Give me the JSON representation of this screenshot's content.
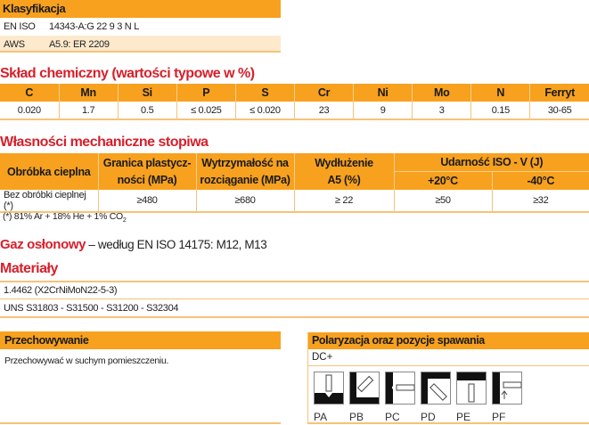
{
  "classification": {
    "title": "Klasyfikacja",
    "rows": [
      {
        "std": "EN ISO",
        "value": "14343-A:G 22 9 3 N L"
      },
      {
        "std": "AWS",
        "value": "A5.9: ER 2209"
      }
    ]
  },
  "chemical": {
    "title": "Skład chemiczny (wartości typowe w %)",
    "headers": [
      "C",
      "Mn",
      "Si",
      "P",
      "S",
      "Cr",
      "Ni",
      "Mo",
      "N",
      "Ferryt"
    ],
    "values": [
      "0.020",
      "1.7",
      "0.5",
      "≤ 0.025",
      "≤ 0.020",
      "23",
      "9",
      "3",
      "0.15",
      "30-65"
    ]
  },
  "mechanical": {
    "title": "Własności mechaniczne stopiwa",
    "headers": [
      "Obróbka cieplna",
      "Granica plastycz-ności (MPa)",
      "Wytrzymałość na rozciąganie (MPa)",
      "Wydłużenie A5 (%)",
      "Udarność ISO - V (J)"
    ],
    "impact_sub": [
      "+20°C",
      "-40°C"
    ],
    "row": [
      "Bez obróbki cieplnej (*)",
      "≥480",
      "≥680",
      "≥ 22",
      "≥50",
      "≥32"
    ],
    "footnote": "(*) 81% Ar + 18% He + 1% CO",
    "footnote_sub": "2"
  },
  "gas": {
    "title": "Gaz osłonowy",
    "text": "– według EN ISO 14175: M12, M13"
  },
  "materials": {
    "title": "Materiały",
    "rows": [
      "1.4462 (X2CrNiMoN22-5-3)",
      "UNS S31803 - S31500 - S31200 - S32304"
    ]
  },
  "storage": {
    "title": "Przechowywanie",
    "text": "Przechowywać w suchym pomieszczeniu."
  },
  "polarity": {
    "title": "Polaryzacja oraz pozycje spawania",
    "current": "DC+",
    "positions": [
      "PA",
      "PB",
      "PC",
      "PD",
      "PE",
      "PF"
    ]
  },
  "colors": {
    "accent": "#f7a11f",
    "title_red": "#d6202b",
    "row_alt": "#fde9cc"
  }
}
